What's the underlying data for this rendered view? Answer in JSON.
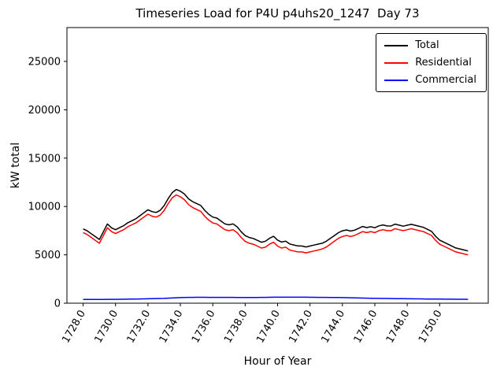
{
  "chart_data": {
    "type": "line",
    "title": "Timeseries Load for P4U p4uhs20_1247  Day 73",
    "xlabel": "Hour of Year",
    "ylabel": "kW total",
    "grid": false,
    "legend_position": "upper right",
    "xlim": [
      1727.0,
      1753.0
    ],
    "ylim": [
      0,
      28500
    ],
    "x_start": 1728.0,
    "x_step": 0.25,
    "x_ticks": [
      1728.0,
      1730.0,
      1732.0,
      1734.0,
      1736.0,
      1738.0,
      1740.0,
      1742.0,
      1744.0,
      1746.0,
      1748.0,
      1750.0
    ],
    "x_tick_labels": [
      "1728.0",
      "1730.0",
      "1732.0",
      "1734.0",
      "1736.0",
      "1738.0",
      "1740.0",
      "1742.0",
      "1744.0",
      "1746.0",
      "1748.0",
      "1750.0"
    ],
    "y_ticks": [
      0,
      5000,
      10000,
      15000,
      20000,
      25000
    ],
    "y_tick_labels": [
      "0",
      "5000",
      "10000",
      "15000",
      "20000",
      "25000"
    ],
    "series": [
      {
        "name": "Total",
        "color": "#000000",
        "values": [
          7680,
          7480,
          7185,
          6885,
          6590,
          7390,
          8195,
          7795,
          7600,
          7805,
          8010,
          8315,
          8520,
          8730,
          9040,
          9350,
          9660,
          9470,
          9380,
          9590,
          10100,
          10820,
          11440,
          11760,
          11580,
          11290,
          10800,
          10505,
          10310,
          10110,
          9610,
          9205,
          8900,
          8800,
          8500,
          8200,
          8100,
          8200,
          7895,
          7390,
          6990,
          6790,
          6690,
          6495,
          6300,
          6405,
          6710,
          6915,
          6520,
          6320,
          6420,
          6120,
          6020,
          5920,
          5915,
          5815,
          5910,
          6010,
          6105,
          6200,
          6400,
          6695,
          6990,
          7285,
          7480,
          7570,
          7460,
          7550,
          7740,
          7930,
          7820,
          7910,
          7800,
          7995,
          8090,
          7985,
          7980,
          8175,
          8070,
          7965,
          8060,
          8155,
          8050,
          7945,
          7840,
          7635,
          7430,
          6925,
          6520,
          6318,
          6115,
          5912,
          5710,
          5608,
          5505,
          5400
        ]
      },
      {
        "name": "Residential",
        "color": "#ff0000",
        "values": [
          7300,
          7100,
          6800,
          6500,
          6200,
          7000,
          7800,
          7400,
          7200,
          7400,
          7600,
          7900,
          8100,
          8300,
          8600,
          8900,
          9200,
          9000,
          8900,
          9100,
          9600,
          10300,
          10900,
          11200,
          11000,
          10700,
          10200,
          9900,
          9700,
          9500,
          9000,
          8600,
          8300,
          8200,
          7900,
          7600,
          7500,
          7600,
          7300,
          6800,
          6400,
          6200,
          6100,
          5900,
          5700,
          5800,
          6100,
          6300,
          5900,
          5700,
          5800,
          5500,
          5400,
          5300,
          5300,
          5200,
          5300,
          5400,
          5500,
          5600,
          5800,
          6100,
          6400,
          6700,
          6900,
          7000,
          6900,
          7000,
          7200,
          7400,
          7300,
          7400,
          7300,
          7500,
          7600,
          7500,
          7500,
          7700,
          7600,
          7500,
          7600,
          7700,
          7600,
          7500,
          7400,
          7200,
          7000,
          6500,
          6100,
          5900,
          5700,
          5500,
          5300,
          5200,
          5100,
          5000
        ]
      },
      {
        "name": "Commercial",
        "color": "#0000ff",
        "values": [
          380,
          380,
          385,
          385,
          390,
          390,
          395,
          395,
          400,
          405,
          410,
          415,
          420,
          430,
          440,
          450,
          460,
          470,
          480,
          490,
          500,
          520,
          540,
          560,
          580,
          590,
          600,
          605,
          610,
          610,
          610,
          605,
          600,
          600,
          600,
          600,
          600,
          600,
          595,
          590,
          590,
          590,
          590,
          595,
          600,
          605,
          610,
          615,
          620,
          620,
          620,
          620,
          620,
          620,
          615,
          615,
          610,
          610,
          605,
          600,
          600,
          595,
          590,
          585,
          580,
          570,
          560,
          550,
          540,
          530,
          520,
          510,
          500,
          495,
          490,
          485,
          480,
          475,
          470,
          465,
          460,
          455,
          450,
          445,
          440,
          435,
          430,
          425,
          420,
          418,
          415,
          412,
          410,
          408,
          405,
          400
        ]
      }
    ]
  }
}
